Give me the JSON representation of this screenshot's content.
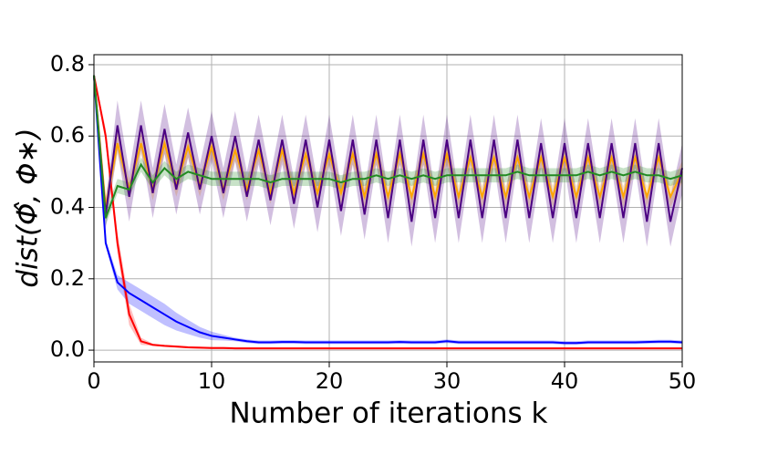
{
  "chart_data": {
    "type": "line",
    "xlabel": "Number of iterations k",
    "ylabel": "dist(Φ̂, Φ∗)",
    "x": [
      0,
      1,
      2,
      3,
      4,
      5,
      6,
      7,
      8,
      9,
      10,
      11,
      12,
      13,
      14,
      15,
      16,
      17,
      18,
      19,
      20,
      21,
      22,
      23,
      24,
      25,
      26,
      27,
      28,
      29,
      30,
      31,
      32,
      33,
      34,
      35,
      36,
      37,
      38,
      39,
      40,
      41,
      42,
      43,
      44,
      45,
      46,
      47,
      48,
      49,
      50
    ],
    "xlim": [
      0,
      50
    ],
    "xticks": [
      0,
      10,
      20,
      30,
      40,
      50
    ],
    "ylim": [
      -0.033,
      0.828
    ],
    "yticks": [
      {
        "value": 0,
        "label": "0.0"
      },
      0.2,
      0.4,
      0.6,
      0.8
    ],
    "grid": true,
    "series": [
      {
        "color": "#ff0000",
        "values": [
          0.77,
          0.6,
          0.3,
          0.1,
          0.025,
          0.015,
          0.012,
          0.01,
          0.008,
          0.007,
          0.006,
          0.006,
          0.005,
          0.005,
          0.005,
          0.005,
          0.005,
          0.005,
          0.005,
          0.005,
          0.005,
          0.005,
          0.005,
          0.005,
          0.005,
          0.005,
          0.005,
          0.005,
          0.005,
          0.005,
          0.005,
          0.005,
          0.005,
          0.005,
          0.005,
          0.005,
          0.005,
          0.005,
          0.005,
          0.005,
          0.005,
          0.005,
          0.005,
          0.005,
          0.005,
          0.005,
          0.005,
          0.005,
          0.005,
          0.005,
          0.005
        ],
        "errors": [
          0.005,
          0.02,
          0.03,
          0.03,
          0.01,
          0.003,
          0.003,
          0.003,
          0.003,
          0.003,
          0.003,
          0.003,
          0.003,
          0.003,
          0.003,
          0.003,
          0.003,
          0.003,
          0.003,
          0.003,
          0.003,
          0.003,
          0.003,
          0.003,
          0.003,
          0.003,
          0.003,
          0.003,
          0.003,
          0.003,
          0.003,
          0.003,
          0.003,
          0.003,
          0.003,
          0.003,
          0.003,
          0.003,
          0.003,
          0.003,
          0.003,
          0.003,
          0.003,
          0.003,
          0.003,
          0.003,
          0.003,
          0.003,
          0.003,
          0.003,
          0.003
        ]
      },
      {
        "color": "#0000ff",
        "values": [
          0.77,
          0.3,
          0.19,
          0.16,
          0.14,
          0.12,
          0.1,
          0.08,
          0.065,
          0.05,
          0.04,
          0.035,
          0.03,
          0.025,
          0.022,
          0.022,
          0.023,
          0.023,
          0.022,
          0.022,
          0.022,
          0.022,
          0.022,
          0.022,
          0.022,
          0.022,
          0.023,
          0.022,
          0.022,
          0.022,
          0.025,
          0.022,
          0.022,
          0.022,
          0.022,
          0.022,
          0.022,
          0.022,
          0.022,
          0.022,
          0.02,
          0.02,
          0.022,
          0.022,
          0.022,
          0.022,
          0.022,
          0.023,
          0.024,
          0.024,
          0.022
        ],
        "errors": [
          0.005,
          0.01,
          0.02,
          0.03,
          0.03,
          0.03,
          0.03,
          0.025,
          0.02,
          0.015,
          0.012,
          0.008,
          0.005,
          0.005,
          0.005,
          0.005,
          0.005,
          0.005,
          0.005,
          0.005,
          0.005,
          0.005,
          0.005,
          0.005,
          0.005,
          0.005,
          0.005,
          0.005,
          0.005,
          0.005,
          0.005,
          0.005,
          0.005,
          0.005,
          0.005,
          0.005,
          0.005,
          0.005,
          0.005,
          0.005,
          0.005,
          0.005,
          0.005,
          0.005,
          0.005,
          0.005,
          0.005,
          0.005,
          0.005,
          0.005,
          0.005
        ]
      },
      {
        "color": "#ffa500",
        "values": [
          0.77,
          0.4,
          0.58,
          0.45,
          0.58,
          0.45,
          0.58,
          0.46,
          0.57,
          0.46,
          0.57,
          0.45,
          0.56,
          0.45,
          0.56,
          0.44,
          0.56,
          0.44,
          0.55,
          0.44,
          0.55,
          0.44,
          0.55,
          0.43,
          0.55,
          0.43,
          0.55,
          0.43,
          0.55,
          0.43,
          0.55,
          0.43,
          0.54,
          0.43,
          0.54,
          0.43,
          0.54,
          0.43,
          0.54,
          0.43,
          0.54,
          0.43,
          0.54,
          0.43,
          0.54,
          0.43,
          0.54,
          0.43,
          0.54,
          0.43,
          0.5
        ],
        "errors": [
          0.01,
          0.03,
          0.03,
          0.03,
          0.03,
          0.03,
          0.03,
          0.03,
          0.03,
          0.03,
          0.03,
          0.03,
          0.03,
          0.03,
          0.03,
          0.03,
          0.03,
          0.03,
          0.03,
          0.03,
          0.03,
          0.03,
          0.03,
          0.03,
          0.03,
          0.03,
          0.03,
          0.03,
          0.03,
          0.03,
          0.03,
          0.03,
          0.03,
          0.03,
          0.03,
          0.03,
          0.03,
          0.03,
          0.03,
          0.03,
          0.03,
          0.03,
          0.03,
          0.03,
          0.03,
          0.03,
          0.03,
          0.03,
          0.03,
          0.03,
          0.03
        ]
      },
      {
        "color": "#4b0082",
        "values": [
          0.77,
          0.38,
          0.63,
          0.43,
          0.63,
          0.44,
          0.62,
          0.45,
          0.61,
          0.45,
          0.6,
          0.44,
          0.6,
          0.43,
          0.59,
          0.42,
          0.59,
          0.41,
          0.59,
          0.4,
          0.59,
          0.39,
          0.59,
          0.38,
          0.59,
          0.37,
          0.59,
          0.36,
          0.59,
          0.37,
          0.59,
          0.37,
          0.59,
          0.37,
          0.59,
          0.37,
          0.59,
          0.37,
          0.58,
          0.37,
          0.58,
          0.37,
          0.58,
          0.37,
          0.58,
          0.37,
          0.58,
          0.36,
          0.58,
          0.36,
          0.51
        ],
        "errors": [
          0.01,
          0.04,
          0.07,
          0.07,
          0.07,
          0.07,
          0.07,
          0.07,
          0.07,
          0.07,
          0.07,
          0.07,
          0.07,
          0.07,
          0.07,
          0.07,
          0.07,
          0.07,
          0.07,
          0.07,
          0.07,
          0.07,
          0.07,
          0.07,
          0.07,
          0.07,
          0.07,
          0.07,
          0.07,
          0.07,
          0.07,
          0.07,
          0.07,
          0.07,
          0.07,
          0.07,
          0.07,
          0.07,
          0.07,
          0.07,
          0.07,
          0.07,
          0.07,
          0.07,
          0.07,
          0.07,
          0.07,
          0.07,
          0.07,
          0.07,
          0.07
        ]
      },
      {
        "color": "#228b22",
        "values": [
          0.77,
          0.37,
          0.46,
          0.45,
          0.52,
          0.47,
          0.51,
          0.48,
          0.5,
          0.49,
          0.48,
          0.48,
          0.48,
          0.48,
          0.48,
          0.47,
          0.48,
          0.48,
          0.48,
          0.48,
          0.48,
          0.47,
          0.48,
          0.48,
          0.49,
          0.48,
          0.49,
          0.48,
          0.49,
          0.48,
          0.49,
          0.49,
          0.49,
          0.49,
          0.49,
          0.49,
          0.5,
          0.49,
          0.49,
          0.49,
          0.49,
          0.49,
          0.5,
          0.49,
          0.5,
          0.49,
          0.5,
          0.49,
          0.49,
          0.48,
          0.49
        ],
        "errors": [
          0.01,
          0.02,
          0.02,
          0.02,
          0.02,
          0.02,
          0.02,
          0.02,
          0.02,
          0.02,
          0.02,
          0.02,
          0.02,
          0.02,
          0.02,
          0.02,
          0.02,
          0.02,
          0.02,
          0.02,
          0.02,
          0.02,
          0.02,
          0.02,
          0.02,
          0.02,
          0.02,
          0.02,
          0.02,
          0.02,
          0.02,
          0.02,
          0.02,
          0.02,
          0.02,
          0.02,
          0.02,
          0.02,
          0.02,
          0.02,
          0.02,
          0.02,
          0.02,
          0.02,
          0.02,
          0.02,
          0.02,
          0.02,
          0.02,
          0.02,
          0.02
        ]
      }
    ]
  }
}
